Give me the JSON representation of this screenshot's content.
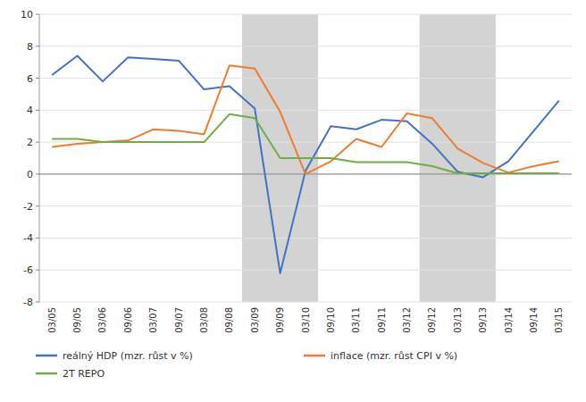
{
  "chart_data": {
    "type": "line",
    "categories": [
      "03/05",
      "09/05",
      "03/06",
      "09/06",
      "03/07",
      "09/07",
      "03/08",
      "09/08",
      "03/09",
      "09/09",
      "03/10",
      "09/10",
      "03/11",
      "09/11",
      "03/12",
      "09/12",
      "03/13",
      "09/13",
      "03/14",
      "09/14",
      "03/15"
    ],
    "series": [
      {
        "name": "reálný HDP (mzr. růst v %)",
        "color": "#4472c4",
        "values": [
          6.2,
          7.4,
          5.8,
          7.3,
          7.2,
          7.1,
          5.3,
          5.5,
          4.1,
          -6.2,
          0.2,
          3.0,
          2.8,
          3.4,
          3.3,
          1.9,
          0.15,
          -0.2,
          0.8,
          2.7,
          4.6
        ]
      },
      {
        "name": "inflace (mzr. růst CPI v %)",
        "color": "#ed7d31",
        "values": [
          1.7,
          1.9,
          2.0,
          2.1,
          2.8,
          2.7,
          2.5,
          6.8,
          6.6,
          3.9,
          0.0,
          0.8,
          2.2,
          1.7,
          3.8,
          3.5,
          1.6,
          0.7,
          0.1,
          0.5,
          0.8
        ]
      },
      {
        "name": "2T REPO",
        "color": "#70ad47",
        "values": [
          2.2,
          2.2,
          2.0,
          2.0,
          2.0,
          2.0,
          2.0,
          3.75,
          3.5,
          1.0,
          1.0,
          1.0,
          0.75,
          0.75,
          0.75,
          0.5,
          0.05,
          0.05,
          0.05,
          0.05,
          0.05
        ]
      }
    ],
    "shaded_ranges": [
      [
        7.5,
        10.5
      ],
      [
        14.5,
        17.5
      ]
    ],
    "shade_color": "#d3d3d3",
    "reference_lines": [
      0
    ],
    "ylim": [
      -8,
      10
    ],
    "yticks": [
      -8,
      -6,
      -4,
      -2,
      0,
      2,
      4,
      6,
      8,
      10
    ],
    "grid": true,
    "legend": "bottom"
  }
}
